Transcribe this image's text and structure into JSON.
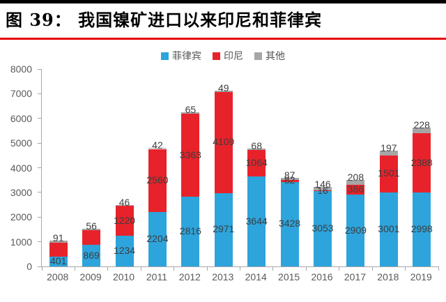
{
  "figure": {
    "caption": "图 39：  我国镍矿进口以来印尼和菲律宾"
  },
  "colors": {
    "caption_rule_top": "#000000",
    "caption_rule_bottom": "#e60000",
    "axis": "#a6a6a6",
    "axis_text": "#595959",
    "data_label_text": "#3d3d3d"
  },
  "chart_data": {
    "type": "bar",
    "stacked": true,
    "title": "图 39：  我国镍矿进口以来印尼和菲律宾",
    "legend_position": "top",
    "grid": false,
    "xlabel": "",
    "ylabel": "",
    "ylim": [
      0,
      8000
    ],
    "yticks": [
      0,
      1000,
      2000,
      3000,
      4000,
      5000,
      6000,
      7000,
      8000
    ],
    "categories": [
      "2008",
      "2009",
      "2010",
      "2011",
      "2012",
      "2013",
      "2014",
      "2015",
      "2016",
      "2017",
      "2018",
      "2019"
    ],
    "series": [
      {
        "id": "philippines",
        "name": "菲律宾",
        "color": "#2da4dc",
        "values": [
          401,
          869,
          1234,
          2204,
          2816,
          2971,
          3644,
          3428,
          3053,
          2909,
          3001,
          2998
        ],
        "labels": [
          "401",
          "869",
          "1234",
          "2204",
          "2816",
          "2971",
          "3644",
          "3428",
          "3053",
          "2909",
          "3001",
          "2998"
        ]
      },
      {
        "id": "indonesia",
        "name": "印尼",
        "color": "#e8222a",
        "values": [
          560,
          600,
          1220,
          2560,
          3363,
          4109,
          1064,
          82,
          16,
          386,
          1501,
          2388
        ],
        "labels": [
          null,
          null,
          "1220",
          "2560",
          "3363",
          "4109",
          "1064",
          "82",
          "16",
          "386",
          "1501",
          "2388"
        ]
      },
      {
        "id": "other",
        "name": "其他",
        "color": "#a6a6a6",
        "values": [
          91,
          56,
          46,
          42,
          65,
          49,
          68,
          87,
          146,
          208,
          197,
          228
        ],
        "labels": [
          "91",
          "56",
          "46",
          "42",
          "65",
          "49",
          "68",
          "87",
          "146",
          "208",
          "197",
          "228"
        ]
      }
    ]
  }
}
